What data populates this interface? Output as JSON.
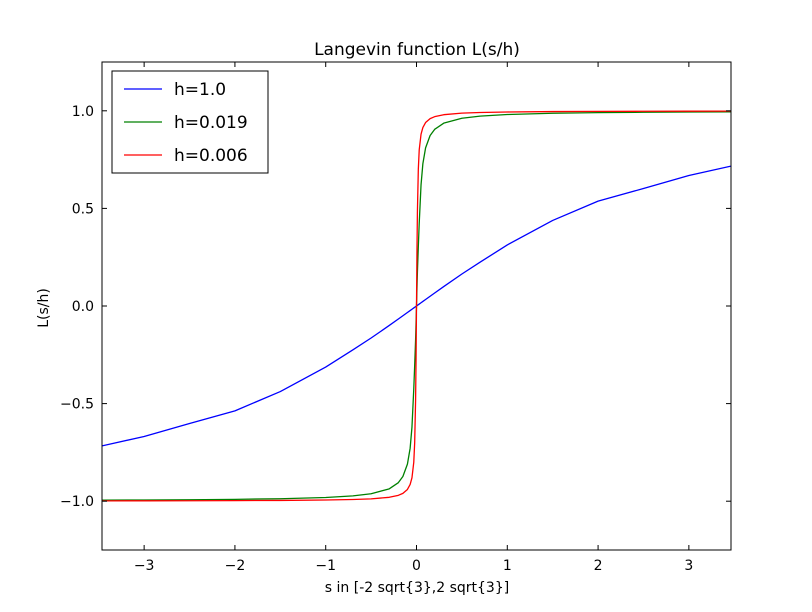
{
  "chart_data": {
    "type": "line",
    "title": "Langevin function L(s/h)",
    "xlabel": "s in [-2 sqrt{3},2 sqrt{3}]",
    "ylabel": "L(s/h)",
    "xlim": [
      -3.4641,
      3.4641
    ],
    "ylim": [
      -1.25,
      1.25
    ],
    "grid": false,
    "legend_position": "top-left",
    "x_ticks": [
      -3,
      -2,
      -1,
      0,
      1,
      2,
      3
    ],
    "x_tick_labels": [
      "−3",
      "−2",
      "−1",
      "0",
      "1",
      "2",
      "3"
    ],
    "y_ticks": [
      -1.0,
      -0.5,
      0.0,
      0.5,
      1.0
    ],
    "y_tick_labels": [
      "−1.0",
      "−0.5",
      "0.0",
      "0.5",
      "1.0"
    ],
    "x": [
      -3.4641,
      -3.0,
      -2.5,
      -2.0,
      -1.5,
      -1.0,
      -0.7,
      -0.5,
      -0.3,
      -0.2,
      -0.15,
      -0.1,
      -0.07,
      -0.05,
      -0.03,
      -0.02,
      -0.01,
      -0.005,
      0.0,
      0.005,
      0.01,
      0.02,
      0.03,
      0.05,
      0.07,
      0.1,
      0.15,
      0.2,
      0.3,
      0.5,
      0.7,
      1.0,
      1.5,
      2.0,
      2.5,
      3.0,
      3.4641
    ],
    "series": [
      {
        "name": "h=1.0",
        "color": "#0000ff",
        "values": [
          -0.7165,
          -0.6685,
          -0.6018,
          -0.5373,
          -0.4382,
          -0.313,
          -0.2243,
          -0.164,
          -0.0997,
          -0.0666,
          -0.05,
          -0.0333,
          -0.0233,
          -0.0167,
          -0.01,
          -0.0067,
          -0.0033,
          -0.0017,
          0.0,
          0.0017,
          0.0033,
          0.0067,
          0.01,
          0.0167,
          0.0233,
          0.0333,
          0.05,
          0.0666,
          0.0997,
          0.164,
          0.2243,
          0.313,
          0.4382,
          0.5373,
          0.6018,
          0.6685,
          0.7165
        ]
      },
      {
        "name": "h=0.019",
        "color": "#008000",
        "values": [
          -0.9945,
          -0.9937,
          -0.9924,
          -0.9905,
          -0.9873,
          -0.981,
          -0.9729,
          -0.962,
          -0.9367,
          -0.905,
          -0.8733,
          -0.81,
          -0.7286,
          -0.6206,
          -0.4238,
          -0.3048,
          -0.1735,
          -0.0876,
          0.0,
          0.0876,
          0.1735,
          0.3048,
          0.4238,
          0.6206,
          0.7286,
          0.81,
          0.8733,
          0.905,
          0.9367,
          0.962,
          0.9729,
          0.981,
          0.9873,
          0.9905,
          0.9924,
          0.9937,
          0.9945
        ]
      },
      {
        "name": "h=0.006",
        "color": "#ff0000",
        "values": [
          -0.9983,
          -0.998,
          -0.9976,
          -0.997,
          -0.996,
          -0.994,
          -0.9914,
          -0.988,
          -0.98,
          -0.97,
          -0.96,
          -0.94,
          -0.9143,
          -0.88,
          -0.8,
          -0.7003,
          -0.4818,
          -0.2733,
          0.0,
          0.2733,
          0.4818,
          0.7003,
          0.8,
          0.88,
          0.9143,
          0.94,
          0.96,
          0.97,
          0.98,
          0.988,
          0.9914,
          0.994,
          0.996,
          0.997,
          0.9976,
          0.998,
          0.9983
        ]
      }
    ]
  }
}
